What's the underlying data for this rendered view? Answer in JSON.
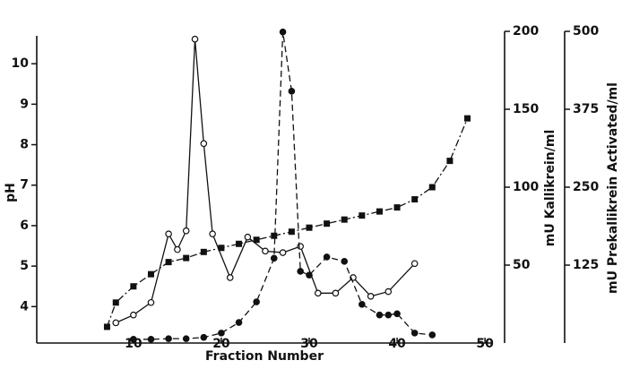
{
  "chart_data": {
    "type": "line",
    "x_label": "Fraction Number",
    "y_label": "pH",
    "y2_label": "mU Kallikrein/ml",
    "y3_label": "mU Prekallikrein Activated/ml",
    "xlim": [
      -1,
      50.7
    ],
    "xticks": [
      10,
      20,
      30,
      40,
      50
    ],
    "ylim": [
      3.1,
      10.8
    ],
    "yticks": [
      4,
      5,
      6,
      7,
      8,
      9,
      10
    ],
    "y2lim": [
      0,
      200
    ],
    "y2ticks": [
      50,
      100,
      150,
      200
    ],
    "y3lim": [
      0,
      500
    ],
    "y3ticks": [
      125,
      250,
      375,
      500
    ],
    "series": [
      {
        "name": "pH",
        "marker": "square",
        "dash": "8 3 2 3",
        "color": "#111",
        "x": [
          7,
          8,
          10,
          12,
          14,
          16,
          18,
          20,
          22,
          24,
          26,
          28,
          30,
          32,
          34,
          36,
          38,
          40,
          42,
          44,
          46,
          48
        ],
        "values": [
          3.5,
          4.1,
          4.5,
          4.8,
          5.1,
          5.2,
          5.35,
          5.45,
          5.55,
          5.65,
          5.75,
          5.85,
          5.95,
          6.05,
          6.15,
          6.25,
          6.35,
          6.45,
          6.65,
          6.95,
          7.6,
          8.65
        ]
      },
      {
        "name": "mU Kallikrein/ml",
        "axis": "y2",
        "marker": "open",
        "dash": "",
        "color": "#111",
        "x": [
          8,
          10,
          12,
          14,
          15,
          16,
          17,
          18,
          19,
          21,
          23,
          25,
          27,
          29,
          31,
          33,
          35,
          37,
          39,
          42
        ],
        "values": [
          13,
          18,
          26,
          70,
          60,
          72,
          195,
          128,
          70,
          42,
          68,
          59,
          58,
          62,
          32,
          32,
          42,
          30,
          33,
          51
        ]
      },
      {
        "name": "mU Prekallikrein Activated/ml",
        "axis": "y3",
        "marker": "filled",
        "dash": "7 4",
        "color": "#111",
        "x": [
          10,
          12,
          14,
          16,
          18,
          20,
          22,
          24,
          26,
          27,
          28,
          29,
          30,
          32,
          34,
          36,
          38,
          39,
          40,
          42,
          44
        ],
        "values": [
          6,
          6,
          7,
          7,
          9,
          16,
          33,
          66,
          136,
          499,
          404,
          115,
          109,
          138,
          131,
          62,
          45,
          45,
          47,
          16,
          13
        ]
      }
    ]
  }
}
